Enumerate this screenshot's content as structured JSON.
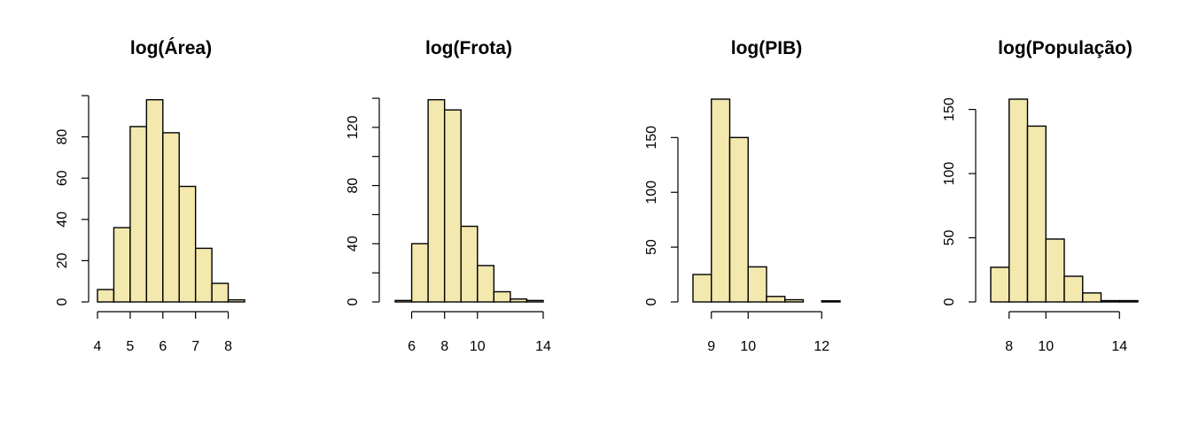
{
  "chart_data": [
    {
      "type": "bar",
      "title": "log(Área)",
      "xlabel": "",
      "ylabel": "",
      "bin_edges": [
        4,
        4.5,
        5,
        5.5,
        6,
        6.5,
        7,
        7.5,
        8,
        8.5
      ],
      "values": [
        6,
        36,
        85,
        98,
        82,
        56,
        26,
        9,
        1
      ],
      "xlim": [
        4,
        8.5
      ],
      "ylim": [
        0,
        100
      ],
      "x_ticks": [
        4,
        5,
        6,
        7,
        8
      ],
      "y_ticks": [
        0,
        20,
        40,
        60,
        80,
        100
      ],
      "y_tick_labels": [
        "0",
        "20",
        "40",
        "60",
        "80",
        ""
      ],
      "bar_fill": "#f3e8ad"
    },
    {
      "type": "bar",
      "title": "log(Frota)",
      "xlabel": "",
      "ylabel": "",
      "bin_edges": [
        5,
        6,
        7,
        8,
        9,
        10,
        11,
        12,
        13,
        14
      ],
      "values": [
        1,
        40,
        139,
        132,
        52,
        25,
        7,
        2,
        1
      ],
      "xlim": [
        5,
        14
      ],
      "ylim": [
        0,
        140
      ],
      "x_ticks": [
        6,
        8,
        10,
        14
      ],
      "y_ticks": [
        0,
        20,
        40,
        60,
        80,
        100,
        120,
        140
      ],
      "y_tick_labels": [
        "0",
        "",
        "40",
        "",
        "80",
        "",
        "120",
        ""
      ],
      "bar_fill": "#f3e8ad"
    },
    {
      "type": "bar",
      "title": "log(PIB)",
      "xlabel": "",
      "ylabel": "",
      "bin_edges": [
        8.5,
        9,
        9.5,
        10,
        10.5,
        11,
        11.5,
        12,
        12.5
      ],
      "values": [
        25,
        185,
        150,
        32,
        5,
        2,
        0,
        1
      ],
      "xlim": [
        8.5,
        12.5
      ],
      "ylim": [
        0,
        185
      ],
      "x_ticks": [
        9,
        10,
        12
      ],
      "y_ticks": [
        0,
        50,
        100,
        150
      ],
      "y_tick_labels": [
        "0",
        "50",
        "100",
        "150"
      ],
      "bar_fill": "#f3e8ad"
    },
    {
      "type": "bar",
      "title": "log(População)",
      "xlabel": "",
      "ylabel": "",
      "bin_edges": [
        7,
        8,
        9,
        10,
        11,
        12,
        13,
        14,
        15
      ],
      "values": [
        27,
        158,
        137,
        49,
        20,
        7,
        1,
        1
      ],
      "xlim": [
        7,
        15
      ],
      "ylim": [
        0,
        158
      ],
      "x_ticks": [
        8,
        10,
        14
      ],
      "y_ticks": [
        0,
        50,
        100,
        150
      ],
      "y_tick_labels": [
        "0",
        "50",
        "100",
        "150"
      ],
      "bar_fill": "#f3e8ad"
    }
  ]
}
